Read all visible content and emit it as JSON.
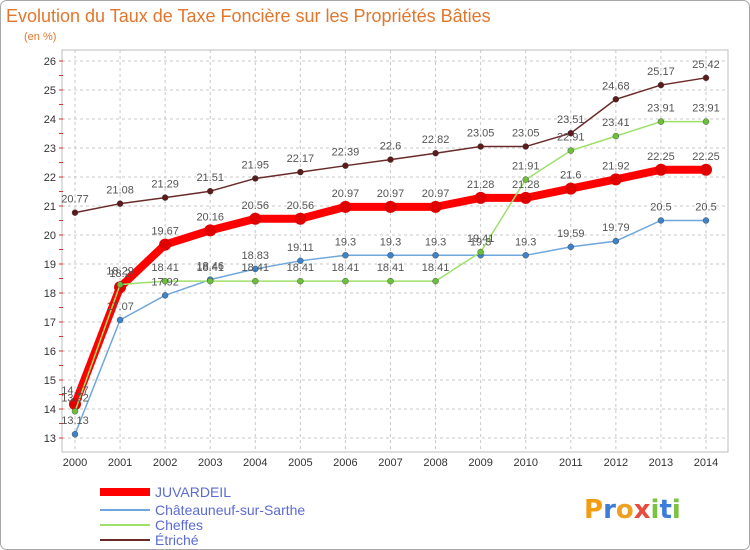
{
  "chart_data": {
    "type": "line",
    "title": "Evolution du Taux de Taxe Foncière sur les Propriétés Bâties",
    "subtitle": "(en %)",
    "xlabel": "",
    "ylabel": "",
    "x": [
      "2000",
      "2001",
      "2002",
      "2003",
      "2004",
      "2005",
      "2006",
      "2007",
      "2008",
      "2009",
      "2010",
      "2011",
      "2012",
      "2013",
      "2014"
    ],
    "ylim": [
      13,
      26
    ],
    "yticks": [
      13,
      14,
      15,
      16,
      17,
      18,
      19,
      20,
      21,
      22,
      23,
      24,
      25,
      26
    ],
    "grid": true,
    "legend": "bottom-left",
    "series": [
      {
        "name": "JUVARDEIL",
        "color": "#ff0000",
        "marker_color": "#e00000",
        "values": [
          14.17,
          18.2,
          19.67,
          20.16,
          20.56,
          20.56,
          20.97,
          20.97,
          20.97,
          21.28,
          21.28,
          21.6,
          21.92,
          22.25,
          22.25
        ]
      },
      {
        "name": "Châteauneuf-sur-Sarthe",
        "color": "#6fa6dc",
        "marker_color": "#3f82c6",
        "values": [
          13.13,
          17.07,
          17.92,
          18.46,
          18.83,
          19.11,
          19.3,
          19.3,
          19.3,
          19.3,
          19.3,
          19.59,
          19.79,
          20.5,
          20.5
        ]
      },
      {
        "name": "Cheffes",
        "color": "#9ee06a",
        "marker_color": "#6cbf3a",
        "values": [
          13.92,
          18.29,
          18.41,
          18.41,
          18.41,
          18.41,
          18.41,
          18.41,
          18.41,
          19.41,
          21.91,
          22.91,
          23.41,
          23.91,
          23.91
        ]
      },
      {
        "name": "Étriché",
        "color": "#6b2a2a",
        "marker_color": "#5a1c1c",
        "values": [
          20.77,
          21.08,
          21.29,
          21.51,
          21.95,
          22.17,
          22.39,
          22.6,
          22.82,
          23.05,
          23.05,
          23.51,
          24.68,
          25.17,
          25.42
        ]
      }
    ]
  },
  "logo": {
    "text": "Proxiti",
    "colors": [
      "#f39c12",
      "#3b7dd8",
      "#f0a020",
      "#e84c3d",
      "#7cc242",
      "#3b7dd8",
      "#7cc242"
    ]
  }
}
